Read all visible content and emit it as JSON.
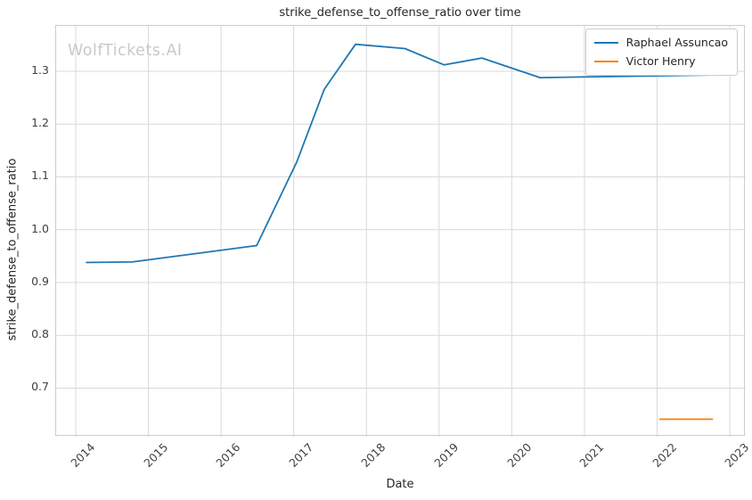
{
  "branding": {
    "watermark": "WolfTickets.AI"
  },
  "chart_data": {
    "type": "line",
    "title": "strike_defense_to_offense_ratio over time",
    "xlabel": "Date",
    "ylabel": "strike_defense_to_offense_ratio",
    "xlim": [
      2013.73,
      2023.22
    ],
    "ylim": [
      0.608,
      1.386
    ],
    "xticks": [
      2014,
      2015,
      2016,
      2017,
      2018,
      2019,
      2020,
      2021,
      2022,
      2023
    ],
    "yticks": [
      0.7,
      0.8,
      0.9,
      1.0,
      1.1,
      1.2,
      1.3
    ],
    "grid": true,
    "legend_position": "upper right",
    "colors": {
      "grid": "#d9d9d9",
      "spine": "#cccccc",
      "title_text": "#262626",
      "tick_text": "#404040",
      "watermark": "#c9c9c9"
    },
    "series": [
      {
        "name": "Raphael Assuncao",
        "color": "#1f77b4",
        "points": [
          [
            2014.14,
            0.938
          ],
          [
            2014.78,
            0.939
          ],
          [
            2016.49,
            0.97
          ],
          [
            2017.04,
            1.128
          ],
          [
            2017.42,
            1.266
          ],
          [
            2017.85,
            1.351
          ],
          [
            2018.53,
            1.343
          ],
          [
            2019.07,
            1.312
          ],
          [
            2019.59,
            1.325
          ],
          [
            2020.39,
            1.288
          ],
          [
            2022.77,
            1.293
          ]
        ]
      },
      {
        "name": "Victor Henry",
        "color": "#ff7f0e",
        "points": [
          [
            2022.03,
            0.641
          ],
          [
            2022.77,
            0.641
          ]
        ]
      }
    ]
  }
}
